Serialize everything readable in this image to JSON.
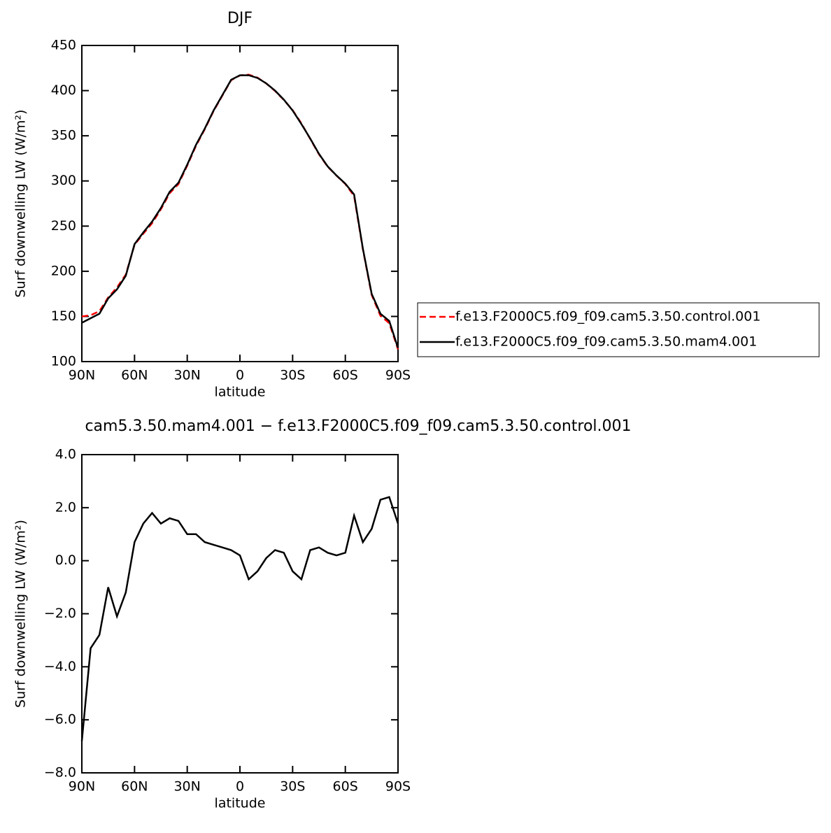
{
  "chart_data": [
    {
      "type": "line",
      "title": "DJF",
      "xlabel": "latitude",
      "ylabel": "Surf downwelling LW (W/m²)",
      "x": [
        90,
        85,
        80,
        75,
        70,
        65,
        60,
        55,
        50,
        45,
        40,
        35,
        30,
        25,
        20,
        15,
        10,
        5,
        0,
        -5,
        -10,
        -15,
        -20,
        -25,
        -30,
        -35,
        -40,
        -45,
        -50,
        -55,
        -60,
        -65,
        -70,
        -75,
        -80,
        -85,
        -90
      ],
      "xlim": [
        90,
        -90
      ],
      "xticks": [
        {
          "value": 90,
          "label": "90N"
        },
        {
          "value": 60,
          "label": "60N"
        },
        {
          "value": 30,
          "label": "30N"
        },
        0,
        {
          "value": -30,
          "label": "30S"
        },
        {
          "value": -60,
          "label": "60S"
        },
        {
          "value": -90,
          "label": "90S"
        }
      ],
      "ylim": [
        100,
        450
      ],
      "yticks": [
        100,
        150,
        200,
        250,
        300,
        350,
        400,
        450
      ],
      "legend": "right",
      "series": [
        {
          "name": "f.e13.F2000C5.f09_f09.cam5.3.50.control.001",
          "color": "#ff0000",
          "dash": true,
          "values": [
            150,
            151.3,
            155.8,
            171,
            182.1,
            196.2,
            229.3,
            241.6,
            253.2,
            268.6,
            286.4,
            296.5,
            317,
            339,
            357.3,
            377.4,
            394.5,
            411.6,
            416.8,
            417.7,
            414.4,
            407.9,
            399.6,
            389.7,
            378.4,
            363.7,
            346.6,
            329.5,
            315.7,
            305.8,
            296.7,
            283.3,
            224.3,
            173.8,
            150.7,
            142.6,
            113.6
          ]
        },
        {
          "name": "f.e13.F2000C5.f09_f09.cam5.3.50.mam4.001",
          "color": "#000000",
          "dash": false,
          "values": [
            143,
            148,
            153,
            170,
            180,
            195,
            230,
            243,
            255,
            270,
            288,
            298,
            318,
            340,
            358,
            378,
            395,
            412,
            417,
            417,
            414,
            408,
            400,
            390,
            378,
            363,
            347,
            330,
            316,
            306,
            297,
            285,
            225,
            175,
            153,
            145,
            115
          ]
        }
      ]
    },
    {
      "type": "line",
      "title": "cam5.3.50.mam4.001 − f.e13.F2000C5.f09_f09.cam5.3.50.control.001",
      "xlabel": "latitude",
      "ylabel": "Surf downwelling LW (W/m²)",
      "x": [
        90,
        85,
        80,
        75,
        70,
        65,
        60,
        55,
        50,
        45,
        40,
        35,
        30,
        25,
        20,
        15,
        10,
        5,
        0,
        -5,
        -10,
        -15,
        -20,
        -25,
        -30,
        -35,
        -40,
        -45,
        -50,
        -55,
        -60,
        -65,
        -70,
        -75,
        -80,
        -85,
        -90
      ],
      "xlim": [
        90,
        -90
      ],
      "xticks": [
        {
          "value": 90,
          "label": "90N"
        },
        {
          "value": 60,
          "label": "60N"
        },
        {
          "value": 30,
          "label": "30N"
        },
        0,
        {
          "value": -30,
          "label": "30S"
        },
        {
          "value": -60,
          "label": "60S"
        },
        {
          "value": -90,
          "label": "90S"
        }
      ],
      "ylim": [
        -8,
        4
      ],
      "yticks": [
        {
          "value": -8,
          "label": "−8.0"
        },
        {
          "value": -6,
          "label": "−6.0"
        },
        {
          "value": -4,
          "label": "−4.0"
        },
        {
          "value": -2,
          "label": "−2.0"
        },
        {
          "value": 0,
          "label": "0.0"
        },
        {
          "value": 2,
          "label": "2.0"
        },
        {
          "value": 4,
          "label": "4.0"
        }
      ],
      "series": [
        {
          "color": "#000000",
          "dash": false,
          "values": [
            -6.8,
            -3.3,
            -2.8,
            -1.0,
            -2.1,
            -1.2,
            0.7,
            1.4,
            1.8,
            1.4,
            1.6,
            1.5,
            1.0,
            1.0,
            0.7,
            0.6,
            0.5,
            0.4,
            0.2,
            -0.7,
            -0.4,
            0.1,
            0.4,
            0.3,
            -0.4,
            -0.7,
            0.4,
            0.5,
            0.3,
            0.2,
            0.3,
            1.7,
            0.7,
            1.2,
            2.3,
            2.4,
            1.4
          ]
        }
      ]
    }
  ]
}
